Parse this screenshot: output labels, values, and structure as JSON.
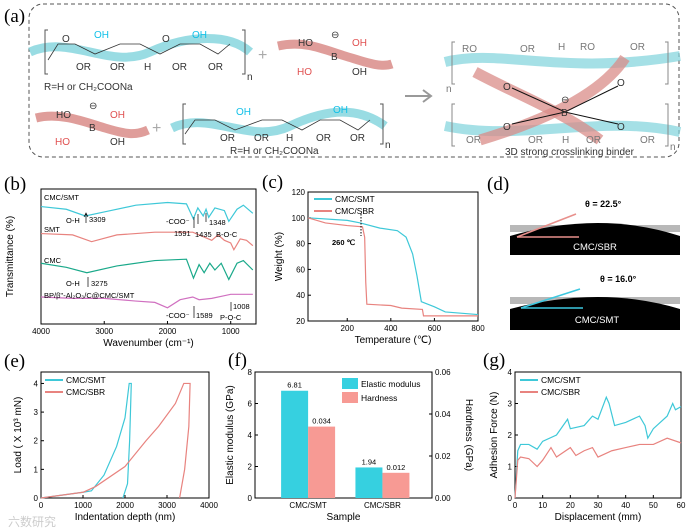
{
  "panel_labels": {
    "a": "(a)",
    "b": "(b)",
    "c": "(c)",
    "d": "(d)",
    "e": "(e)",
    "f": "(f)",
    "g": "(g)"
  },
  "scheme": {
    "oh": "OH",
    "or": "OR",
    "h": "H",
    "o": "O",
    "n": "n",
    "plus": "+",
    "ho": "HO",
    "b": "B",
    "minus": "⊖",
    "ro": "RO",
    "r_def": "R=H or CH₂COONa",
    "product_label": "3D strong crosslinking binder"
  },
  "contact_angle": {
    "top": {
      "angle_label": "θ = 22.5°",
      "sample": "CMC/SBR",
      "line_color": "#e8908c"
    },
    "bottom": {
      "angle_label": "θ = 16.0°",
      "sample": "CMC/SMT",
      "line_color": "#3cc8e0"
    }
  },
  "watermark": "六数研究",
  "chart_data": [
    {
      "id": "b",
      "type": "line",
      "title": "",
      "xlabel": "Wavenumber (cm⁻¹)",
      "ylabel": "Transmittance (%)",
      "xlim": [
        4000,
        600
      ],
      "ylim": [
        0,
        100
      ],
      "xticks": [
        4000,
        3000,
        2000,
        1000
      ],
      "series": [
        {
          "name": "CMC/SMT",
          "color": "#3ec8d8",
          "points": [
            [
              4000,
              87
            ],
            [
              3600,
              85
            ],
            [
              3300,
              80
            ],
            [
              3000,
              83
            ],
            [
              2500,
              88
            ],
            [
              2000,
              90
            ],
            [
              1700,
              89
            ],
            [
              1591,
              78
            ],
            [
              1520,
              86
            ],
            [
              1435,
              80
            ],
            [
              1390,
              85
            ],
            [
              1348,
              79
            ],
            [
              1250,
              86
            ],
            [
              1100,
              84
            ],
            [
              1030,
              76
            ],
            [
              900,
              85
            ],
            [
              800,
              88
            ],
            [
              650,
              82
            ]
          ]
        },
        {
          "name": "SMT",
          "color": "#e8837f",
          "points": [
            [
              4000,
              67
            ],
            [
              3500,
              66
            ],
            [
              3200,
              61
            ],
            [
              2800,
              66
            ],
            [
              2200,
              68
            ],
            [
              1600,
              68
            ],
            [
              1500,
              66
            ],
            [
              1300,
              62
            ],
            [
              1200,
              66
            ],
            [
              1100,
              62
            ],
            [
              1000,
              60
            ],
            [
              950,
              55
            ],
            [
              850,
              63
            ],
            [
              750,
              62
            ],
            [
              650,
              58
            ]
          ]
        },
        {
          "name": "CMC",
          "color": "#1aa98a",
          "points": [
            [
              4000,
              45
            ],
            [
              3600,
              42
            ],
            [
              3275,
              38
            ],
            [
              2800,
              43
            ],
            [
              2200,
              47
            ],
            [
              1700,
              48
            ],
            [
              1589,
              34
            ],
            [
              1500,
              44
            ],
            [
              1420,
              38
            ],
            [
              1330,
              45
            ],
            [
              1250,
              40
            ],
            [
              1150,
              45
            ],
            [
              1030,
              33
            ],
            [
              900,
              45
            ],
            [
              800,
              47
            ],
            [
              650,
              40
            ]
          ]
        },
        {
          "name": "BP/β''-Al₂O₃/C@CMC/SMT",
          "color": "#d070c0",
          "points": [
            [
              4000,
              20
            ],
            [
              3500,
              19
            ],
            [
              3000,
              19
            ],
            [
              2500,
              17
            ],
            [
              2200,
              16
            ],
            [
              2000,
              12
            ],
            [
              1800,
              18
            ],
            [
              1600,
              20
            ],
            [
              1500,
              18
            ],
            [
              1300,
              19
            ],
            [
              1100,
              21
            ],
            [
              1000,
              22
            ],
            [
              650,
              22
            ]
          ]
        }
      ],
      "annotations": [
        "O-H",
        "3309",
        "-COO⁻",
        "1591",
        "1435",
        "1348",
        "B-O-C",
        "O-H",
        "3275",
        "-COO⁻",
        "1589",
        "1008",
        "P-O-C"
      ]
    },
    {
      "id": "c",
      "type": "line",
      "title": "",
      "xlabel": "Temperature (℃)",
      "ylabel": "Weight (%)",
      "xlim": [
        20,
        800
      ],
      "ylim": [
        20,
        120
      ],
      "xticks": [
        200,
        400,
        600,
        800
      ],
      "yticks": [
        20,
        40,
        60,
        80,
        100,
        120
      ],
      "legend": "top-left",
      "series": [
        {
          "name": "CMC/SMT",
          "color": "#3ec8d8",
          "points": [
            [
              20,
              100
            ],
            [
              200,
              98
            ],
            [
              260,
              96
            ],
            [
              350,
              92
            ],
            [
              430,
              90
            ],
            [
              470,
              85
            ],
            [
              500,
              72
            ],
            [
              520,
              55
            ],
            [
              540,
              35
            ],
            [
              600,
              31
            ],
            [
              650,
              27
            ],
            [
              800,
              25
            ]
          ]
        },
        {
          "name": "CMC/SBR",
          "color": "#e8837f",
          "points": [
            [
              20,
              100
            ],
            [
              100,
              96
            ],
            [
              200,
              94
            ],
            [
              270,
              93
            ],
            [
              280,
              85
            ],
            [
              285,
              50
            ],
            [
              290,
              33
            ],
            [
              400,
              32
            ],
            [
              450,
              30
            ],
            [
              545,
              29
            ],
            [
              550,
              24
            ],
            [
              800,
              24
            ]
          ]
        }
      ],
      "annotations": [
        "260 ℃"
      ]
    },
    {
      "id": "e",
      "type": "line",
      "title": "",
      "xlabel": "Indentation depth (nm)",
      "ylabel": "Load ( X 10³ mN)",
      "xlim": [
        0,
        4000
      ],
      "ylim": [
        0,
        4.4
      ],
      "xticks": [
        0,
        1000,
        2000,
        3000,
        4000
      ],
      "yticks": [
        0,
        1,
        2,
        3,
        4
      ],
      "legend": "top-left",
      "series": [
        {
          "name": "CMC/SMT",
          "color": "#3ec8d8",
          "points": [
            [
              0,
              0
            ],
            [
              500,
              0.1
            ],
            [
              1000,
              0.2
            ],
            [
              1200,
              0.25
            ],
            [
              1500,
              0.8
            ],
            [
              1800,
              1.8
            ],
            [
              2000,
              2.8
            ],
            [
              2100,
              4
            ],
            [
              2150,
              4
            ],
            [
              2110,
              2
            ],
            [
              2060,
              0.5
            ],
            [
              1950,
              0
            ]
          ]
        },
        {
          "name": "CMC/SBR",
          "color": "#e8837f",
          "points": [
            [
              0,
              0
            ],
            [
              500,
              0.1
            ],
            [
              1000,
              0.2
            ],
            [
              1300,
              0.4
            ],
            [
              2000,
              1.1
            ],
            [
              2500,
              2
            ],
            [
              2800,
              2.5
            ],
            [
              3200,
              3.3
            ],
            [
              3400,
              4
            ],
            [
              3550,
              4
            ],
            [
              3520,
              2.5
            ],
            [
              3420,
              1
            ],
            [
              3300,
              0
            ]
          ]
        }
      ]
    },
    {
      "id": "f",
      "type": "bar",
      "title": "",
      "xlabel": "Sample",
      "ylabel": "Elastic modulus (GPa)",
      "ylabel_right": "Hardness (GPa)",
      "categories": [
        "CMC/SMT",
        "CMC/SBR"
      ],
      "ylim": [
        0,
        8
      ],
      "ylim_right": [
        0,
        0.06
      ],
      "yticks": [
        0,
        2,
        4,
        6,
        8
      ],
      "yticks_right": [
        "0.00",
        "0.02",
        "0.04",
        "0.06"
      ],
      "legend": "top-right",
      "series": [
        {
          "name": "Elastic modulus",
          "color": "#36d0e0",
          "axis": "left",
          "values": [
            6.81,
            1.94
          ],
          "labels": [
            "6.81",
            "1.94"
          ]
        },
        {
          "name": "Hardness",
          "color": "#f79a94",
          "axis": "right",
          "values": [
            0.034,
            0.012
          ],
          "labels": [
            "0.034",
            "0.012"
          ]
        }
      ]
    },
    {
      "id": "g",
      "type": "line",
      "title": "",
      "xlabel": "Displacement (mm)",
      "ylabel": "Adhesion Force (N)",
      "xlim": [
        0,
        60
      ],
      "ylim": [
        0,
        4
      ],
      "xticks": [
        0,
        10,
        20,
        30,
        40,
        50,
        60
      ],
      "yticks": [
        0,
        1,
        2,
        3,
        4
      ],
      "legend": "top-left",
      "series": [
        {
          "name": "CMC/SMT",
          "color": "#3ec8d8",
          "points": [
            [
              0,
              0
            ],
            [
              1,
              1.5
            ],
            [
              2,
              1.7
            ],
            [
              5,
              1.7
            ],
            [
              8,
              1.55
            ],
            [
              10,
              1.8
            ],
            [
              15,
              2.0
            ],
            [
              19,
              2.5
            ],
            [
              20,
              2.2
            ],
            [
              25,
              2.3
            ],
            [
              28,
              2.6
            ],
            [
              30,
              2.5
            ],
            [
              33,
              3.2
            ],
            [
              34,
              3.0
            ],
            [
              36,
              2.3
            ],
            [
              40,
              2.4
            ],
            [
              45,
              2.6
            ],
            [
              47,
              2.3
            ],
            [
              48,
              1.9
            ],
            [
              50,
              2.2
            ],
            [
              55,
              2.6
            ],
            [
              57,
              3.0
            ],
            [
              58,
              2.8
            ],
            [
              60,
              2.9
            ]
          ]
        },
        {
          "name": "CMC/SBR",
          "color": "#e8837f",
          "points": [
            [
              0,
              0
            ],
            [
              1,
              1.2
            ],
            [
              2,
              1.3
            ],
            [
              5,
              1.25
            ],
            [
              8,
              1.0
            ],
            [
              10,
              1.2
            ],
            [
              13,
              1.6
            ],
            [
              15,
              1.3
            ],
            [
              20,
              1.6
            ],
            [
              22,
              1.35
            ],
            [
              25,
              1.5
            ],
            [
              28,
              1.6
            ],
            [
              30,
              1.3
            ],
            [
              35,
              1.5
            ],
            [
              40,
              1.6
            ],
            [
              45,
              1.7
            ],
            [
              50,
              1.7
            ],
            [
              55,
              1.9
            ],
            [
              60,
              1.75
            ]
          ]
        }
      ]
    }
  ]
}
